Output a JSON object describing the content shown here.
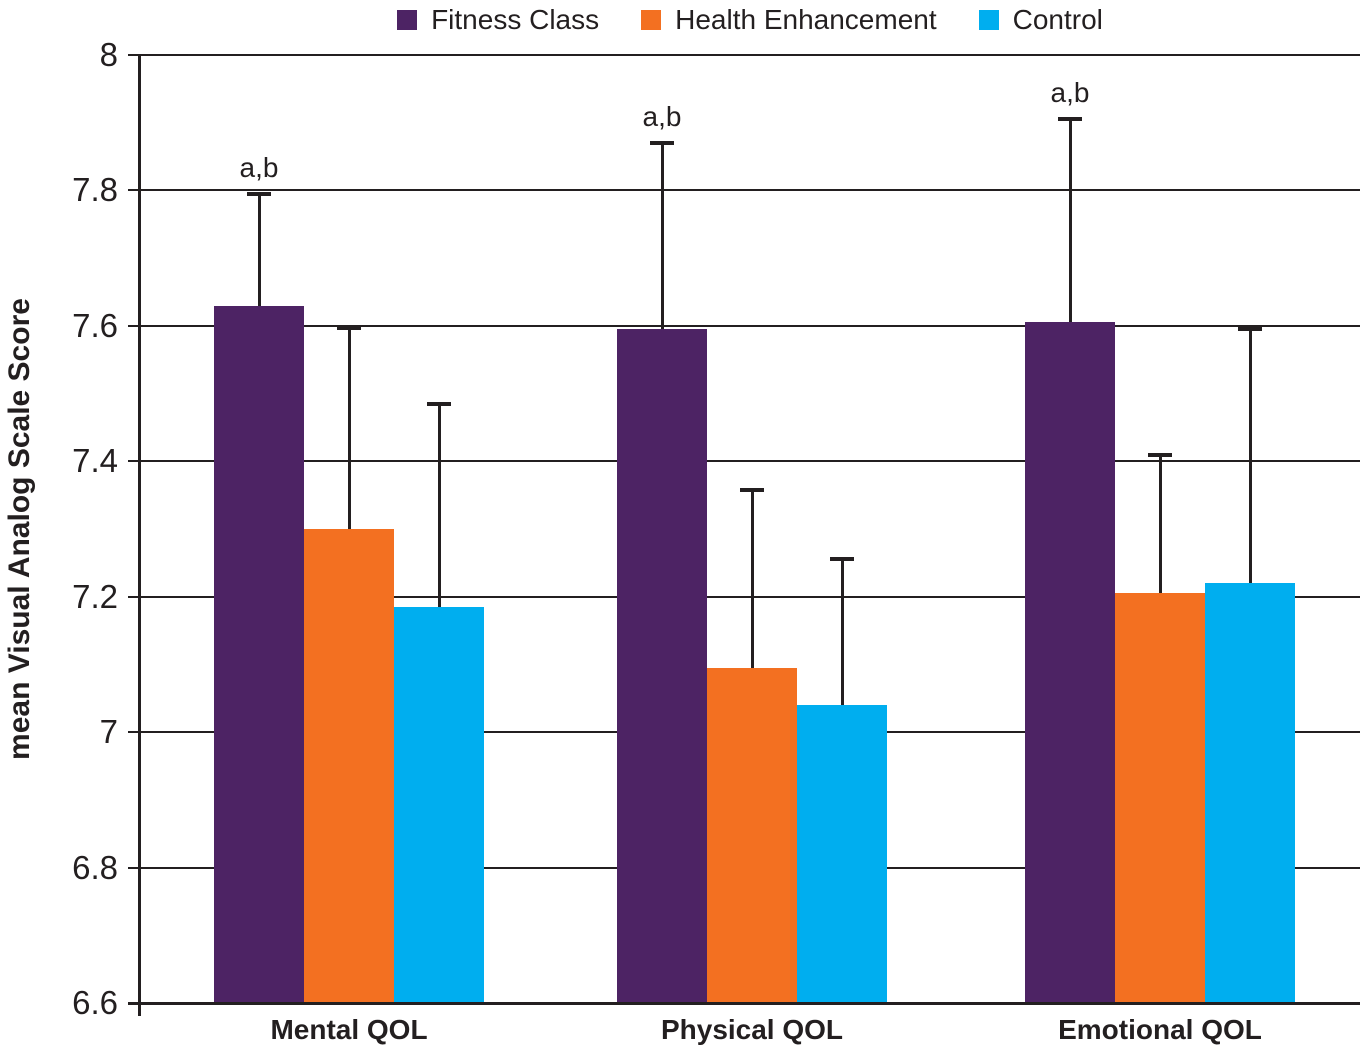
{
  "chart_data": {
    "type": "bar",
    "title": "",
    "ylabel": "mean Visual Analog Scale Score",
    "xlabel": "",
    "ylim": [
      6.6,
      8.0
    ],
    "yticks": [
      8,
      7.8,
      7.6,
      7.4,
      7.2,
      7,
      6.8,
      6.6
    ],
    "ytick_labels": [
      "8",
      "7.8",
      "7.6",
      "7.4",
      "7.2",
      "7",
      "6.8",
      "6.6"
    ],
    "categories": [
      "Mental QOL",
      "Physical QOL",
      "Emotional QOL"
    ],
    "series": [
      {
        "name": "Fitness Class",
        "color": "#4D2364",
        "values": [
          7.63,
          7.595,
          7.605
        ],
        "error_top": [
          7.795,
          7.87,
          7.905
        ]
      },
      {
        "name": "Health Enhancement",
        "color": "#F37021",
        "values": [
          7.3,
          7.095,
          7.205
        ],
        "error_top": [
          7.597,
          7.357,
          7.41
        ]
      },
      {
        "name": "Control",
        "color": "#00AEEF",
        "values": [
          7.185,
          7.04,
          7.22
        ],
        "error_top": [
          7.485,
          7.255,
          7.595
        ]
      }
    ],
    "annotations": [
      {
        "text": "a,b",
        "category_index": 0,
        "series_index": 0
      },
      {
        "text": "a,b",
        "category_index": 1,
        "series_index": 0
      },
      {
        "text": "a,b",
        "category_index": 2,
        "series_index": 0
      }
    ],
    "error_bars": "upper-only",
    "grid": "horizontal",
    "legend_position": "top",
    "text_color": "#231F20",
    "background_color": "#FFFFFF"
  }
}
